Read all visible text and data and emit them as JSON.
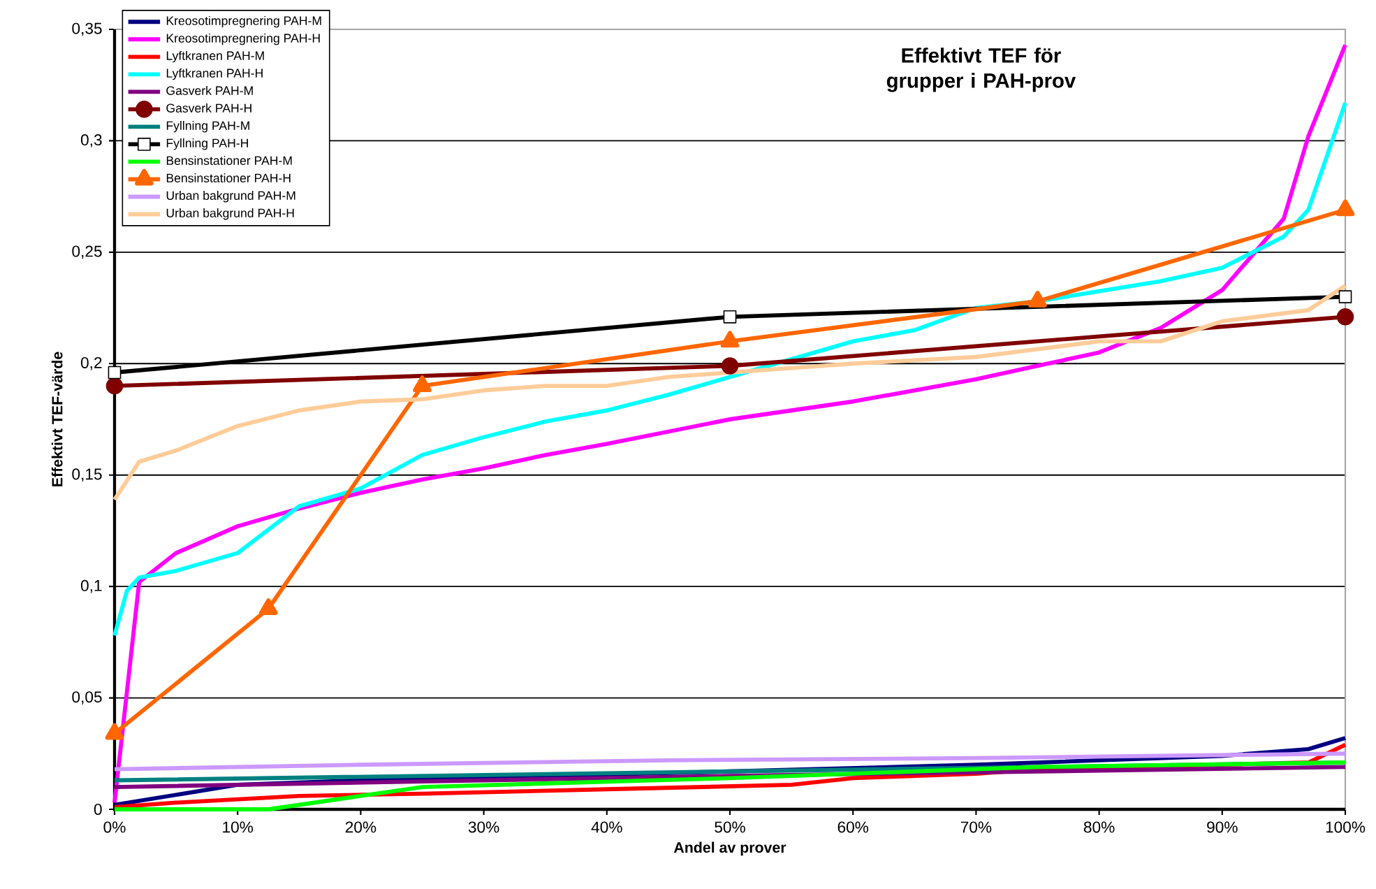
{
  "chart_data": {
    "type": "line",
    "title": "Effektivt TEF för grupper i PAH-prov",
    "xlabel": "Andel av prover",
    "ylabel": "Effektivt TEF-värde",
    "xlim": [
      0,
      100
    ],
    "ylim": [
      0,
      0.35
    ],
    "xticks": [
      {
        "value": 0,
        "label": "0%"
      },
      {
        "value": 10,
        "label": "10%"
      },
      {
        "value": 20,
        "label": "20%"
      },
      {
        "value": 30,
        "label": "30%"
      },
      {
        "value": 40,
        "label": "40%"
      },
      {
        "value": 50,
        "label": "50%"
      },
      {
        "value": 60,
        "label": "60%"
      },
      {
        "value": 70,
        "label": "70%"
      },
      {
        "value": 80,
        "label": "80%"
      },
      {
        "value": 90,
        "label": "90%"
      },
      {
        "value": 100,
        "label": "100%"
      }
    ],
    "yticks": [
      0,
      {
        "value": 0.05,
        "label": "0,05"
      },
      {
        "value": 0.1,
        "label": "0,1"
      },
      {
        "value": 0.15,
        "label": "0,15"
      },
      {
        "value": 0.2,
        "label": "0,2"
      },
      {
        "value": 0.25,
        "label": "0,25"
      },
      {
        "value": 0.3,
        "label": "0,3"
      },
      {
        "value": 0.35,
        "label": "0,35"
      }
    ],
    "grid": "y",
    "legend": "top left",
    "line_style": "solid",
    "series": [
      {
        "name": "Kreosotimpregnering PAH-M",
        "color": "#000080",
        "x": [
          0,
          10,
          20,
          50,
          70,
          90,
          97,
          100
        ],
        "values": [
          0.002,
          0.011,
          0.013,
          0.017,
          0.02,
          0.024,
          0.027,
          0.032
        ]
      },
      {
        "name": "Kreosotimpregnering PAH-H",
        "color": "#ff00ff",
        "x": [
          0,
          2,
          5,
          10,
          15,
          20,
          25,
          30,
          35,
          40,
          50,
          60,
          70,
          75,
          80,
          85,
          90,
          95,
          97,
          100
        ],
        "values": [
          0.003,
          0.102,
          0.115,
          0.127,
          0.135,
          0.142,
          0.148,
          0.153,
          0.159,
          0.164,
          0.175,
          0.183,
          0.193,
          0.199,
          0.205,
          0.216,
          0.233,
          0.265,
          0.302,
          0.343
        ]
      },
      {
        "name": "Lyftkranen PAH-M",
        "color": "#ff0000",
        "x": [
          0,
          5,
          15,
          25,
          40,
          55,
          60,
          70,
          75,
          97,
          100
        ],
        "values": [
          0.001,
          0.003,
          0.006,
          0.007,
          0.009,
          0.011,
          0.014,
          0.016,
          0.018,
          0.021,
          0.029
        ]
      },
      {
        "name": "Lyftkranen PAH-H",
        "color": "#00ffff",
        "x": [
          0,
          1,
          2,
          5,
          10,
          15,
          20,
          25,
          30,
          35,
          40,
          45,
          50,
          55,
          60,
          65,
          70,
          75,
          85,
          90,
          95,
          97,
          100
        ],
        "values": [
          0.078,
          0.098,
          0.104,
          0.107,
          0.115,
          0.136,
          0.144,
          0.159,
          0.167,
          0.174,
          0.179,
          0.186,
          0.194,
          0.202,
          0.21,
          0.215,
          0.225,
          0.228,
          0.237,
          0.243,
          0.257,
          0.269,
          0.317
        ]
      },
      {
        "name": "Gasverk PAH-M",
        "color": "#800080",
        "x": [
          0,
          50,
          100
        ],
        "values": [
          0.01,
          0.015,
          0.019
        ]
      },
      {
        "name": "Gasverk PAH-H",
        "color": "#800000",
        "marker": "circle",
        "x": [
          0,
          50,
          100
        ],
        "values": [
          0.19,
          0.199,
          0.221
        ]
      },
      {
        "name": "Fyllning PAH-M",
        "color": "#008080",
        "x": [
          0,
          50,
          100
        ],
        "values": [
          0.013,
          0.017,
          0.021
        ]
      },
      {
        "name": "Fyllning PAH-H",
        "color": "#000000",
        "marker": "square",
        "x": [
          0,
          50,
          100
        ],
        "values": [
          0.196,
          0.221,
          0.23
        ]
      },
      {
        "name": "Bensinstationer PAH-M",
        "color": "#00ff00",
        "x": [
          0,
          12.5,
          25,
          50,
          75,
          100
        ],
        "values": [
          0,
          0,
          0.01,
          0.014,
          0.019,
          0.021
        ]
      },
      {
        "name": "Bensinstationer PAH-H",
        "color": "#ff6600",
        "marker": "triangle",
        "x": [
          0,
          12.5,
          25,
          50,
          75,
          100
        ],
        "values": [
          0.034,
          0.09,
          0.19,
          0.21,
          0.228,
          0.269
        ]
      },
      {
        "name": "Urban bakgrund PAH-M",
        "color": "#cc99ff",
        "x": [
          0,
          20,
          45,
          70,
          100
        ],
        "values": [
          0.018,
          0.02,
          0.022,
          0.023,
          0.025
        ]
      },
      {
        "name": "Urban bakgrund PAH-H",
        "color": "#ffcc99",
        "x": [
          0,
          2,
          5,
          10,
          15,
          20,
          25,
          30,
          35,
          40,
          45,
          50,
          55,
          60,
          70,
          80,
          85,
          90,
          97,
          100
        ],
        "values": [
          0.139,
          0.156,
          0.161,
          0.172,
          0.179,
          0.183,
          0.184,
          0.188,
          0.19,
          0.19,
          0.194,
          0.196,
          0.198,
          0.2,
          0.203,
          0.21,
          0.21,
          0.219,
          0.224,
          0.235
        ]
      }
    ]
  }
}
